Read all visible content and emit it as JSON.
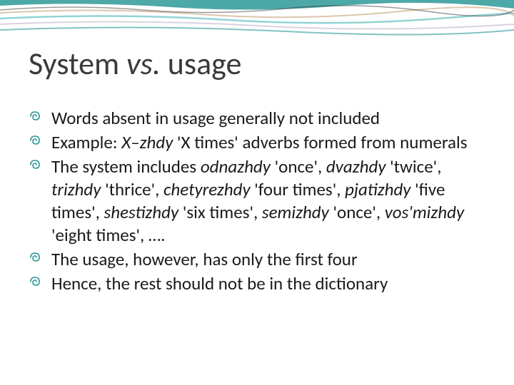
{
  "slide": {
    "title_word1": "System ",
    "title_vs": "vs.",
    "title_word2": " usage",
    "title_color": "#3a3a3a",
    "title_fontsize": 44,
    "bullet_color": "#2e9999",
    "body_fontsize": 25,
    "body_color": "#1a1a1a",
    "background_color": "#ffffff",
    "bullets": [
      {
        "runs": [
          {
            "text": "Words absent in usage generally not included",
            "italic": false
          }
        ]
      },
      {
        "runs": [
          {
            "text": "Example: ",
            "italic": false
          },
          {
            "text": "X–zhdy",
            "italic": true
          },
          {
            "text": " 'X times' adverbs formed from numerals",
            "italic": false
          }
        ]
      },
      {
        "runs": [
          {
            "text": "The system includes ",
            "italic": false
          },
          {
            "text": "odnazhdy",
            "italic": true
          },
          {
            "text": " 'once', ",
            "italic": false
          },
          {
            "text": "dvazhdy",
            "italic": true
          },
          {
            "text": " 'twice', ",
            "italic": false
          },
          {
            "text": "trizhdy",
            "italic": true
          },
          {
            "text": " 'thrice', ",
            "italic": false
          },
          {
            "text": "chetyrezhdy",
            "italic": true
          },
          {
            "text": " 'four times', ",
            "italic": false
          },
          {
            "text": "pjatizhdy",
            "italic": true
          },
          {
            "text": " 'five times', ",
            "italic": false
          },
          {
            "text": "shestizhdy",
            "italic": true
          },
          {
            "text": " 'six times', ",
            "italic": false
          },
          {
            "text": "semizhdy",
            "italic": true
          },
          {
            "text": " 'once', ",
            "italic": false
          },
          {
            "text": "vos'mizhdy",
            "italic": true
          },
          {
            "text": " 'eight times', ….",
            "italic": false
          }
        ]
      },
      {
        "runs": [
          {
            "text": "The usage, however, has only the first four",
            "italic": false
          }
        ]
      },
      {
        "runs": [
          {
            "text": "Hence, the rest should not be in the dictionary",
            "italic": false
          }
        ]
      }
    ],
    "decoration": {
      "wave_colors": [
        "#2e9999",
        "#d4b896",
        "#7fcccc",
        "#c9c0d3",
        "#3a3a3a"
      ]
    }
  }
}
